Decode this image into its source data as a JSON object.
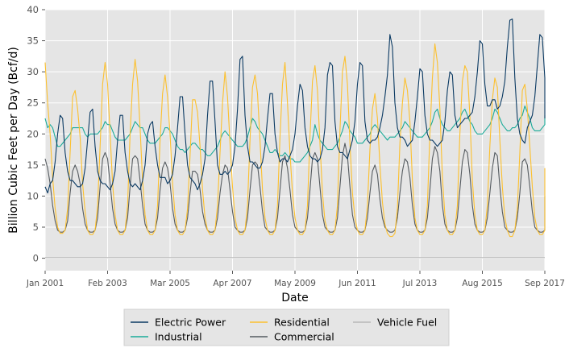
{
  "chart_data": {
    "type": "line",
    "xlabel": "Date",
    "ylabel": "Billion Cubic Feet per Day (Bcf/d)",
    "xlim": [
      "2001-01",
      "2017-09"
    ],
    "ylim": [
      -2,
      40
    ],
    "y_ticks": [
      0,
      5,
      10,
      15,
      20,
      25,
      30,
      35,
      40
    ],
    "x_ticks": [
      {
        "date": "2001-01",
        "label": "Jan 2001"
      },
      {
        "date": "2003-02",
        "label": "Feb 2003"
      },
      {
        "date": "2005-03",
        "label": "Mar 2005"
      },
      {
        "date": "2007-04",
        "label": "Apr 2007"
      },
      {
        "date": "2009-05",
        "label": "May 2009"
      },
      {
        "date": "2011-06",
        "label": "Jun 2011"
      },
      {
        "date": "2013-07",
        "label": "Jul 2013"
      },
      {
        "date": "2015-08",
        "label": "Aug 2015"
      },
      {
        "date": "2017-09",
        "label": "Sep 2017"
      }
    ],
    "grid": true,
    "legend_position": "bottom-center",
    "frequency": "monthly",
    "start": "2001-01",
    "series": [
      {
        "name": "Electric Power",
        "color": "#0b3a63",
        "values": [
          11.5,
          10.5,
          12.0,
          12.5,
          15.5,
          20.0,
          23.0,
          22.5,
          17.0,
          14.0,
          12.5,
          12.5,
          12.0,
          11.5,
          11.5,
          12.0,
          14.5,
          19.0,
          23.5,
          24.0,
          18.0,
          14.0,
          12.5,
          12.0,
          12.0,
          11.5,
          11.0,
          12.0,
          14.0,
          19.0,
          23.0,
          23.0,
          17.0,
          14.0,
          12.0,
          11.5,
          12.0,
          11.5,
          11.0,
          12.5,
          15.0,
          20.0,
          21.5,
          22.0,
          18.0,
          15.0,
          13.0,
          13.0,
          13.0,
          12.0,
          12.5,
          13.5,
          16.5,
          21.0,
          26.0,
          26.0,
          20.0,
          15.0,
          13.0,
          12.5,
          12.0,
          11.0,
          12.0,
          13.5,
          16.0,
          23.0,
          28.5,
          28.5,
          22.0,
          15.0,
          13.5,
          13.5,
          14.0,
          13.5,
          14.0,
          15.0,
          18.0,
          24.0,
          32.0,
          32.5,
          23.0,
          18.0,
          15.5,
          15.5,
          15.0,
          14.5,
          14.5,
          15.5,
          18.0,
          22.5,
          26.5,
          26.5,
          20.0,
          17.0,
          15.5,
          16.0,
          16.0,
          15.5,
          16.5,
          17.5,
          20.0,
          24.5,
          28.0,
          27.0,
          21.0,
          18.0,
          16.5,
          16.0,
          16.0,
          15.5,
          16.0,
          17.5,
          21.0,
          29.5,
          31.5,
          31.0,
          22.0,
          18.0,
          17.0,
          17.0,
          16.5,
          16.0,
          17.5,
          19.0,
          22.0,
          28.0,
          31.5,
          31.0,
          22.0,
          19.0,
          18.5,
          19.0,
          19.0,
          19.5,
          21.0,
          23.0,
          26.0,
          29.5,
          36.0,
          34.0,
          25.0,
          21.0,
          19.5,
          19.5,
          19.0,
          18.0,
          18.5,
          19.0,
          22.0,
          26.0,
          30.5,
          30.0,
          23.0,
          20.0,
          19.0,
          19.0,
          18.5,
          18.0,
          18.5,
          19.0,
          22.0,
          27.0,
          30.0,
          29.5,
          23.0,
          21.0,
          21.5,
          22.0,
          22.5,
          22.5,
          23.0,
          23.5,
          26.0,
          30.0,
          35.0,
          34.5,
          28.0,
          24.5,
          24.5,
          25.5,
          25.5,
          24.0,
          24.5,
          26.0,
          28.5,
          34.0,
          38.3,
          38.5,
          29.0,
          22.5,
          20.0,
          19.0,
          18.5,
          21.0,
          22.0,
          23.0,
          26.0,
          31.0,
          36.0,
          35.5,
          29.0,
          25.5,
          22.5
        ]
      },
      {
        "name": "Industrial",
        "color": "#1aab99",
        "values": [
          22.5,
          21.0,
          21.5,
          21.0,
          19.5,
          18.0,
          18.0,
          18.5,
          19.0,
          19.5,
          20.0,
          21.0,
          21.0,
          21.0,
          21.0,
          21.0,
          20.0,
          19.5,
          20.0,
          20.0,
          20.0,
          20.0,
          20.5,
          21.0,
          22.0,
          21.5,
          21.5,
          20.5,
          19.5,
          19.0,
          19.0,
          19.0,
          19.0,
          19.5,
          20.0,
          21.0,
          22.0,
          21.5,
          21.0,
          21.0,
          20.0,
          19.0,
          18.5,
          18.5,
          18.5,
          19.0,
          19.5,
          20.0,
          21.0,
          21.0,
          20.5,
          20.0,
          19.0,
          18.0,
          17.5,
          17.5,
          17.0,
          17.5,
          18.0,
          18.5,
          18.5,
          18.0,
          17.5,
          17.5,
          17.0,
          16.5,
          16.5,
          17.0,
          17.5,
          18.0,
          19.0,
          20.0,
          20.5,
          20.0,
          19.5,
          19.0,
          18.5,
          18.0,
          18.0,
          18.0,
          18.5,
          19.5,
          21.0,
          22.5,
          22.0,
          21.0,
          20.5,
          20.0,
          19.0,
          18.0,
          17.0,
          17.0,
          17.5,
          17.0,
          16.5,
          16.5,
          17.0,
          16.5,
          16.0,
          16.0,
          15.5,
          15.5,
          15.5,
          16.0,
          16.5,
          17.0,
          18.0,
          19.0,
          21.5,
          20.0,
          19.0,
          18.5,
          18.0,
          17.5,
          17.5,
          17.5,
          18.0,
          18.5,
          19.5,
          20.5,
          22.0,
          21.5,
          20.5,
          20.0,
          19.5,
          18.5,
          18.5,
          18.5,
          19.0,
          19.5,
          20.0,
          21.0,
          21.5,
          21.0,
          20.5,
          20.0,
          19.5,
          19.0,
          19.5,
          19.5,
          19.5,
          20.0,
          20.5,
          21.0,
          22.0,
          21.5,
          21.0,
          20.5,
          20.0,
          19.5,
          19.5,
          19.5,
          20.0,
          20.5,
          21.0,
          22.0,
          23.5,
          24.0,
          22.5,
          21.5,
          21.0,
          20.5,
          20.5,
          21.0,
          21.5,
          22.0,
          22.5,
          23.5,
          24.0,
          23.0,
          22.0,
          21.5,
          20.5,
          20.0,
          20.0,
          20.0,
          20.5,
          21.0,
          21.5,
          22.5,
          24.0,
          23.5,
          22.5,
          21.5,
          21.0,
          20.5,
          20.5,
          21.0,
          21.0,
          21.5,
          22.5,
          23.0,
          24.5,
          23.5,
          22.5,
          21.0,
          20.5,
          20.5,
          20.5,
          21.0,
          21.5,
          22.0,
          23.0
        ]
      },
      {
        "name": "Residential",
        "color": "#fcc02e",
        "values": [
          31.5,
          25.0,
          20.0,
          13.0,
          8.0,
          5.0,
          4.0,
          4.0,
          4.5,
          8.0,
          17.0,
          26.0,
          27.0,
          24.0,
          19.5,
          12.0,
          7.5,
          4.5,
          3.8,
          3.8,
          4.5,
          8.5,
          18.0,
          28.0,
          31.5,
          28.0,
          20.0,
          12.0,
          7.0,
          4.5,
          3.8,
          3.8,
          4.5,
          8.5,
          20.0,
          28.0,
          32.0,
          28.5,
          21.0,
          12.5,
          7.0,
          4.5,
          3.8,
          3.8,
          4.5,
          8.5,
          19.0,
          26.5,
          29.5,
          26.0,
          20.0,
          12.0,
          7.0,
          4.5,
          3.8,
          3.8,
          4.5,
          8.0,
          16.5,
          25.5,
          25.5,
          23.5,
          18.0,
          11.0,
          6.5,
          4.5,
          3.8,
          3.8,
          4.5,
          8.5,
          17.0,
          25.0,
          30.0,
          26.0,
          18.5,
          11.5,
          6.5,
          4.5,
          3.8,
          3.8,
          4.5,
          8.5,
          19.0,
          27.5,
          29.5,
          26.5,
          19.0,
          11.0,
          6.5,
          4.5,
          3.8,
          3.8,
          4.5,
          8.5,
          19.5,
          28.0,
          31.5,
          25.0,
          17.0,
          10.5,
          6.5,
          4.5,
          3.8,
          3.8,
          4.5,
          8.5,
          19.5,
          28.5,
          31.0,
          27.0,
          18.5,
          10.5,
          6.0,
          4.5,
          3.8,
          3.8,
          4.5,
          8.5,
          20.5,
          30.0,
          32.5,
          28.0,
          18.5,
          10.5,
          6.5,
          4.5,
          3.8,
          3.8,
          4.5,
          8.5,
          17.5,
          24.0,
          26.5,
          22.5,
          15.0,
          9.0,
          5.5,
          4.0,
          3.5,
          3.5,
          4.0,
          8.0,
          18.5,
          25.0,
          29.0,
          27.0,
          22.0,
          12.5,
          6.5,
          4.5,
          3.8,
          3.8,
          4.5,
          8.5,
          20.0,
          29.0,
          34.5,
          31.5,
          24.0,
          13.0,
          7.0,
          4.5,
          3.8,
          3.8,
          4.5,
          8.5,
          20.0,
          28.5,
          31.0,
          30.0,
          23.0,
          12.5,
          7.0,
          4.5,
          3.8,
          3.8,
          4.5,
          8.5,
          18.0,
          25.5,
          29.0,
          27.5,
          19.0,
          11.5,
          6.5,
          4.5,
          3.5,
          3.5,
          4.5,
          8.0,
          17.0,
          27.0,
          28.0,
          24.0,
          18.0,
          11.5,
          6.5,
          4.5,
          3.8,
          3.8,
          4.5,
          8.5,
          14.5
        ]
      },
      {
        "name": "Commercial",
        "color": "#555b60",
        "values": [
          16.0,
          14.5,
          12.0,
          8.5,
          6.0,
          4.5,
          4.2,
          4.2,
          4.5,
          6.0,
          10.5,
          14.0,
          15.0,
          14.0,
          12.0,
          8.0,
          5.5,
          4.5,
          4.2,
          4.2,
          4.5,
          6.5,
          11.5,
          16.0,
          17.0,
          16.0,
          12.0,
          8.0,
          5.5,
          4.5,
          4.2,
          4.2,
          4.5,
          6.5,
          11.5,
          16.0,
          16.5,
          16.0,
          12.5,
          8.5,
          5.5,
          4.5,
          4.2,
          4.2,
          4.5,
          6.5,
          11.0,
          14.5,
          15.5,
          14.5,
          12.0,
          8.0,
          5.5,
          4.5,
          4.2,
          4.2,
          4.5,
          6.5,
          10.5,
          14.0,
          14.0,
          13.5,
          11.0,
          7.5,
          5.5,
          4.5,
          4.2,
          4.2,
          4.5,
          6.5,
          10.5,
          13.5,
          15.0,
          14.5,
          11.0,
          7.5,
          5.0,
          4.5,
          4.2,
          4.2,
          4.5,
          6.5,
          11.0,
          15.0,
          15.5,
          15.0,
          11.5,
          7.5,
          5.0,
          4.5,
          4.2,
          4.2,
          4.5,
          6.5,
          11.0,
          15.5,
          16.5,
          14.5,
          11.0,
          7.0,
          5.0,
          4.5,
          4.2,
          4.2,
          4.5,
          6.5,
          11.0,
          16.0,
          17.0,
          16.0,
          11.5,
          7.0,
          5.0,
          4.5,
          4.2,
          4.2,
          4.5,
          6.5,
          11.5,
          16.5,
          18.5,
          16.5,
          11.5,
          7.0,
          5.0,
          4.5,
          4.2,
          4.2,
          4.5,
          6.5,
          10.5,
          14.0,
          15.0,
          13.5,
          9.5,
          6.5,
          5.0,
          4.5,
          4.2,
          4.2,
          4.5,
          6.5,
          10.5,
          14.0,
          16.0,
          15.5,
          13.0,
          8.5,
          5.5,
          4.5,
          4.2,
          4.2,
          4.5,
          6.5,
          11.0,
          16.0,
          18.0,
          17.0,
          14.0,
          8.5,
          5.5,
          4.5,
          4.2,
          4.2,
          4.5,
          6.5,
          11.0,
          15.5,
          17.5,
          17.0,
          13.5,
          8.5,
          5.5,
          4.5,
          4.2,
          4.2,
          4.5,
          6.5,
          10.5,
          14.5,
          17.0,
          16.5,
          11.5,
          7.5,
          5.0,
          4.5,
          4.2,
          4.2,
          4.5,
          6.5,
          10.5,
          15.5,
          16.0,
          15.0,
          11.5,
          7.5,
          5.0,
          4.5,
          4.2,
          4.2,
          4.5,
          6.5,
          10.0
        ]
      },
      {
        "name": "Vehicle Fuel",
        "color": "#b8b8b8",
        "values": [
          0.1,
          0.1,
          0.1,
          0.1,
          0.1,
          0.1,
          0.1,
          0.1,
          0.1,
          0.1,
          0.1,
          0.1,
          0.1,
          0.1,
          0.1,
          0.1,
          0.1,
          0.1,
          0.1,
          0.1,
          0.1,
          0.1,
          0.1,
          0.1,
          0.1,
          0.1,
          0.1,
          0.1,
          0.1,
          0.1,
          0.1,
          0.1,
          0.1,
          0.1,
          0.1,
          0.1,
          0.1,
          0.1,
          0.1,
          0.1,
          0.1,
          0.1,
          0.1,
          0.1,
          0.1,
          0.1,
          0.1,
          0.1,
          0.1,
          0.1,
          0.1,
          0.1,
          0.1,
          0.1,
          0.1,
          0.1,
          0.1,
          0.1,
          0.1,
          0.1,
          0.1,
          0.1,
          0.1,
          0.1,
          0.1,
          0.1,
          0.1,
          0.1,
          0.1,
          0.1,
          0.1,
          0.1,
          0.1,
          0.1,
          0.1,
          0.1,
          0.1,
          0.1,
          0.1,
          0.1,
          0.1,
          0.1,
          0.1,
          0.1,
          0.1,
          0.1,
          0.1,
          0.1,
          0.1,
          0.1,
          0.1,
          0.1,
          0.1,
          0.1,
          0.1,
          0.1,
          0.1,
          0.1,
          0.1,
          0.1,
          0.1,
          0.1,
          0.1,
          0.1,
          0.1,
          0.1,
          0.1,
          0.1,
          0.1,
          0.1,
          0.1,
          0.1,
          0.1,
          0.1,
          0.1,
          0.1,
          0.1,
          0.1,
          0.1,
          0.1,
          0.1,
          0.1,
          0.1,
          0.1,
          0.1,
          0.1,
          0.1,
          0.1,
          0.1,
          0.1,
          0.1,
          0.1,
          0.1,
          0.1,
          0.1,
          0.1,
          0.1,
          0.1,
          0.1,
          0.1,
          0.1,
          0.1,
          0.1,
          0.1,
          0.1,
          0.1,
          0.1,
          0.1,
          0.1,
          0.1,
          0.1,
          0.1,
          0.1,
          0.1,
          0.1,
          0.1,
          0.1,
          0.1,
          0.1,
          0.1,
          0.1,
          0.1,
          0.1,
          0.1,
          0.1,
          0.1,
          0.1,
          0.1,
          0.1,
          0.1,
          0.1,
          0.1,
          0.1,
          0.1,
          0.1,
          0.1,
          0.1,
          0.1,
          0.1,
          0.1,
          0.1,
          0.1,
          0.1,
          0.1,
          0.1,
          0.1,
          0.1,
          0.1,
          0.1,
          0.1,
          0.1,
          0.1,
          0.1,
          0.1,
          0.1,
          0.1,
          0.1,
          0.1,
          0.1,
          0.1,
          0.1,
          0.1,
          0.1
        ]
      }
    ],
    "legend": [
      {
        "name": "Electric Power",
        "color": "#0b3a63"
      },
      {
        "name": "Industrial",
        "color": "#1aab99"
      },
      {
        "name": "Residential",
        "color": "#fcc02e"
      },
      {
        "name": "Commercial",
        "color": "#555b60"
      },
      {
        "name": "Vehicle Fuel",
        "color": "#b8b8b8"
      }
    ]
  }
}
